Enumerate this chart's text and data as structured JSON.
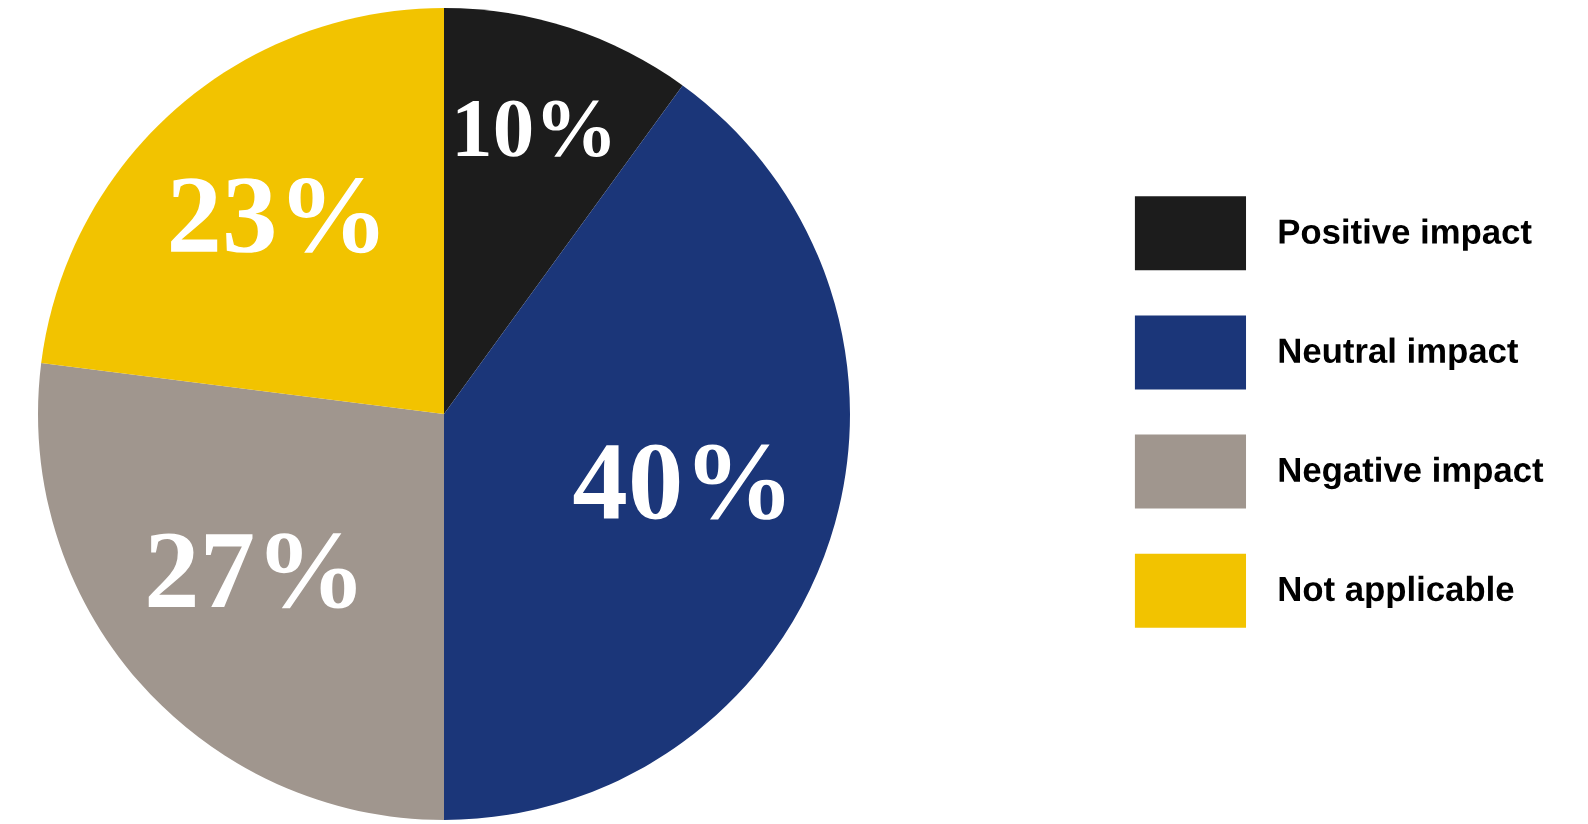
{
  "chart_data": {
    "type": "pie",
    "categories": [
      "Positive impact",
      "Neutral impact",
      "Negative impact",
      "Not applicable"
    ],
    "values": [
      10,
      40,
      27,
      23
    ],
    "colors": [
      "#1c1c1c",
      "#1b3679",
      "#a0968e",
      "#f2c300"
    ],
    "value_labels": [
      "10%",
      "40%",
      "27%",
      "23%"
    ],
    "legend": "right"
  }
}
